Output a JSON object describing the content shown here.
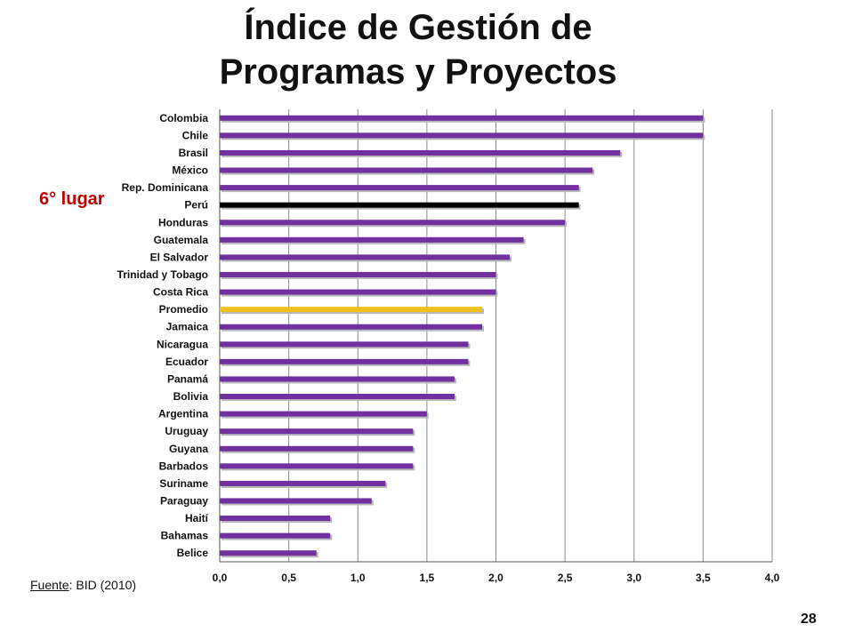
{
  "title_line1": "Índice de Gestión de",
  "title_line2": "Programas y Proyectos",
  "callout": "6° lugar",
  "source": {
    "label": "Fuente",
    "text": ": BID (2010)"
  },
  "page_number": "28",
  "chart_data": {
    "type": "bar",
    "orientation": "horizontal",
    "title": "Índice de Gestión de Programas y Proyectos",
    "categories": [
      "Colombia",
      "Chile",
      "Brasil",
      "México",
      "Rep. Dominicana",
      "Perú",
      "Honduras",
      "Guatemala",
      "El Salvador",
      "Trinidad y Tobago",
      "Costa Rica",
      "Promedio",
      "Jamaica",
      "Nicaragua",
      "Ecuador",
      "Panamá",
      "Bolivia",
      "Argentina",
      "Uruguay",
      "Guyana",
      "Barbados",
      "Suriname",
      "Paraguay",
      "Haití",
      "Bahamas",
      "Belice"
    ],
    "values": [
      3.5,
      3.5,
      2.9,
      2.7,
      2.6,
      2.6,
      2.5,
      2.2,
      2.1,
      2.0,
      2.0,
      1.9,
      1.9,
      1.8,
      1.8,
      1.7,
      1.7,
      1.5,
      1.4,
      1.4,
      1.4,
      1.2,
      1.1,
      0.8,
      0.8,
      0.7
    ],
    "xlim": [
      0,
      4
    ],
    "xticks": [
      "0,0",
      "0,5",
      "1,0",
      "1,5",
      "2,0",
      "2,5",
      "3,0",
      "3,5",
      "4,0"
    ],
    "grid": true,
    "colors": {
      "default": "#7030a0",
      "highlight": "#000000",
      "average": "#f0c020"
    },
    "highlight_category": "Perú",
    "average_category": "Promedio"
  }
}
